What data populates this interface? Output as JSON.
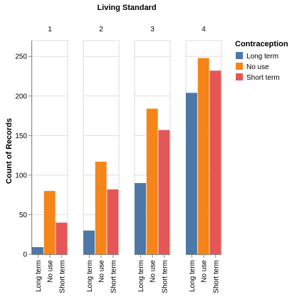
{
  "chart_data": {
    "type": "bar",
    "title": "Living Standard",
    "ylabel": "Count of Records",
    "ylim": [
      0,
      270
    ],
    "yticks": [
      0,
      50,
      100,
      150,
      200,
      250
    ],
    "grid": true,
    "categories": [
      "Long term",
      "No use",
      "Short term"
    ],
    "facets": [
      {
        "label": "1",
        "values": [
          9,
          80,
          40
        ]
      },
      {
        "label": "2",
        "values": [
          30,
          117,
          82
        ]
      },
      {
        "label": "3",
        "values": [
          90,
          184,
          157
        ]
      },
      {
        "label": "4",
        "values": [
          204,
          248,
          232
        ]
      }
    ],
    "legend": {
      "title": "Contraception",
      "position": "right",
      "items": [
        {
          "label": "Long term",
          "color": "#4c78a8"
        },
        {
          "label": "No use",
          "color": "#f58518"
        },
        {
          "label": "Short term",
          "color": "#e45756"
        }
      ]
    }
  }
}
